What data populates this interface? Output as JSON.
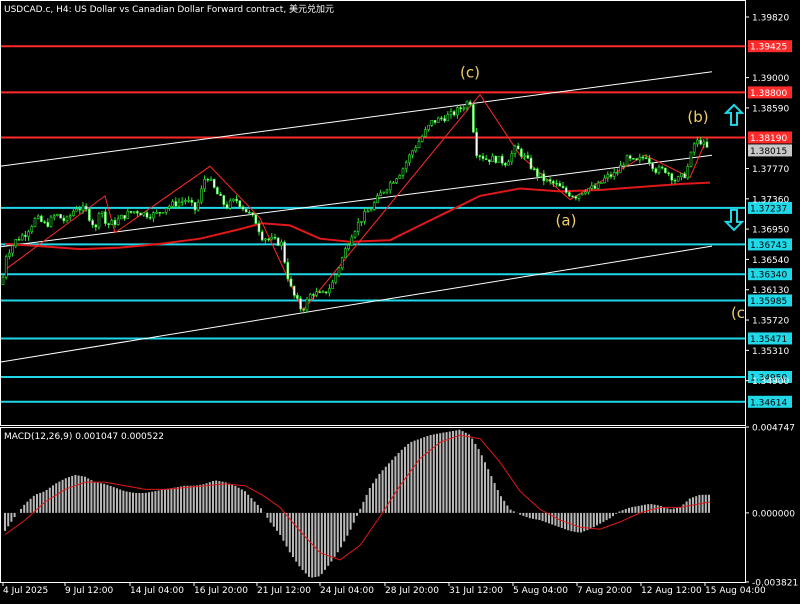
{
  "title": "USDCAD.c, H4:  US Dollar vs Canadian Dollar Forward contract, 美元兑加元",
  "chart_data": [
    {
      "type": "candlestick",
      "symbol": "USDCAD.c",
      "timeframe": "H4",
      "ylim": [
        1.343,
        1.4005
      ],
      "y_ticks": [
        "1.39820",
        "1.39000",
        "1.38590",
        "1.37770",
        "1.37360",
        "1.36950",
        "1.36540",
        "1.36130",
        "1.35720",
        "1.35310",
        "1.34900"
      ],
      "x_ticks": [
        "4 Jul 2025",
        "9 Jul 12:00",
        "14 Jul 04:00",
        "16 Jul 20:00",
        "21 Jul 12:00",
        "24 Jul 04:00",
        "28 Jul 20:00",
        "31 Jul 12:00",
        "5 Aug 04:00",
        "7 Aug 20:00",
        "12 Aug 12:00",
        "15 Aug 04:00"
      ],
      "price_path": [
        [
          0,
          1.36
        ],
        [
          6,
          1.366
        ],
        [
          16,
          1.368
        ],
        [
          26,
          1.369
        ],
        [
          36,
          1.371
        ],
        [
          46,
          1.37
        ],
        [
          56,
          1.3715
        ],
        [
          66,
          1.3705
        ],
        [
          76,
          1.3725
        ],
        [
          86,
          1.372
        ],
        [
          96,
          1.3695
        ],
        [
          100,
          1.373
        ],
        [
          106,
          1.37
        ],
        [
          116,
          1.3705
        ],
        [
          126,
          1.3715
        ],
        [
          136,
          1.372
        ],
        [
          146,
          1.3715
        ],
        [
          156,
          1.3715
        ],
        [
          166,
          1.3725
        ],
        [
          176,
          1.373
        ],
        [
          186,
          1.3735
        ],
        [
          196,
          1.372
        ],
        [
          206,
          1.377
        ],
        [
          216,
          1.3745
        ],
        [
          226,
          1.3725
        ],
        [
          236,
          1.3735
        ],
        [
          246,
          1.372
        ],
        [
          256,
          1.3705
        ],
        [
          262,
          1.3685
        ],
        [
          272,
          1.368
        ],
        [
          282,
          1.3675
        ],
        [
          286,
          1.364
        ],
        [
          292,
          1.361
        ],
        [
          302,
          1.3585
        ],
        [
          312,
          1.361
        ],
        [
          322,
          1.3605
        ],
        [
          332,
          1.362
        ],
        [
          342,
          1.3655
        ],
        [
          352,
          1.369
        ],
        [
          362,
          1.371
        ],
        [
          372,
          1.3725
        ],
        [
          382,
          1.3745
        ],
        [
          392,
          1.376
        ],
        [
          402,
          1.3775
        ],
        [
          412,
          1.38
        ],
        [
          422,
          1.382
        ],
        [
          432,
          1.384
        ],
        [
          442,
          1.3845
        ],
        [
          452,
          1.385
        ],
        [
          462,
          1.386
        ],
        [
          470,
          1.387
        ],
        [
          476,
          1.38
        ],
        [
          486,
          1.379
        ],
        [
          496,
          1.379
        ],
        [
          506,
          1.3785
        ],
        [
          516,
          1.3805
        ],
        [
          526,
          1.379
        ],
        [
          536,
          1.377
        ],
        [
          546,
          1.376
        ],
        [
          556,
          1.3755
        ],
        [
          566,
          1.3745
        ],
        [
          576,
          1.374
        ],
        [
          586,
          1.375
        ],
        [
          596,
          1.375
        ],
        [
          606,
          1.3765
        ],
        [
          616,
          1.377
        ],
        [
          626,
          1.379
        ],
        [
          636,
          1.3785
        ],
        [
          646,
          1.3795
        ],
        [
          656,
          1.3775
        ],
        [
          666,
          1.3775
        ],
        [
          676,
          1.376
        ],
        [
          686,
          1.377
        ],
        [
          694,
          1.381
        ],
        [
          700,
          1.3815
        ],
        [
          706,
          1.3805
        ],
        [
          710,
          1.3801
        ]
      ],
      "moving_average": [
        [
          5,
          1.3675
        ],
        [
          40,
          1.3672
        ],
        [
          80,
          1.3668
        ],
        [
          120,
          1.367
        ],
        [
          160,
          1.3675
        ],
        [
          200,
          1.3682
        ],
        [
          240,
          1.3695
        ],
        [
          262,
          1.3703
        ],
        [
          290,
          1.37
        ],
        [
          320,
          1.3682
        ],
        [
          350,
          1.3678
        ],
        [
          390,
          1.368
        ],
        [
          420,
          1.37
        ],
        [
          450,
          1.372
        ],
        [
          480,
          1.374
        ],
        [
          520,
          1.375
        ],
        [
          560,
          1.3746
        ],
        [
          600,
          1.3748
        ],
        [
          640,
          1.3752
        ],
        [
          680,
          1.3756
        ],
        [
          710,
          1.3758
        ]
      ],
      "zigzag": [
        [
          5,
          1.364
        ],
        [
          105,
          1.374
        ],
        [
          115,
          1.369
        ],
        [
          210,
          1.378
        ],
        [
          260,
          1.371
        ],
        [
          303,
          1.3585
        ],
        [
          480,
          1.3877
        ],
        [
          520,
          1.3795
        ],
        [
          570,
          1.3735
        ],
        [
          645,
          1.3795
        ],
        [
          690,
          1.3765
        ],
        [
          705,
          1.3812
        ]
      ],
      "channel_lines": [
        {
          "name": "upper",
          "from": [
            0,
            1.378
          ],
          "to": [
            712,
            1.3908
          ]
        },
        {
          "name": "middle",
          "from": [
            0,
            1.3671
          ],
          "to": [
            712,
            1.3795
          ]
        },
        {
          "name": "lower",
          "from": [
            0,
            1.3515
          ],
          "to": [
            712,
            1.3672
          ]
        }
      ],
      "resistance_levels": [
        {
          "label": "1.39425",
          "value": 1.39425,
          "color": "#ff2a2a"
        },
        {
          "label": "1.38800",
          "value": 1.388,
          "color": "#ff2a2a"
        },
        {
          "label": "1.38190",
          "value": 1.3819,
          "color": "#ff2a2a"
        }
      ],
      "support_levels": [
        {
          "label": "1.37237",
          "value": 1.37237,
          "color": "#20d8e8"
        },
        {
          "label": "1.36743",
          "value": 1.36743,
          "color": "#20d8e8"
        },
        {
          "label": "1.36340",
          "value": 1.3634,
          "color": "#20d8e8"
        },
        {
          "label": "1.35985",
          "value": 1.35985,
          "color": "#20d8e8"
        },
        {
          "label": "1.35471",
          "value": 1.35471,
          "color": "#20d8e8"
        },
        {
          "label": "1.34950",
          "value": 1.3495,
          "color": "#20d8e8"
        },
        {
          "label": "1.34614",
          "value": 1.34614,
          "color": "#20d8e8"
        }
      ],
      "current_price_label": "1.38015",
      "current_price": 1.38015,
      "wave_labels": [
        {
          "text": "(c)",
          "x": 470,
          "y": 1.39
        },
        {
          "text": "(b)",
          "x": 698,
          "y": 1.384
        },
        {
          "text": "(a)",
          "x": 566,
          "y": 1.37
        },
        {
          "text": "(c",
          "x": 738,
          "y": 1.3575
        }
      ],
      "arrows": [
        {
          "direction": "up",
          "color": "#20d8e8"
        },
        {
          "direction": "down",
          "color": "#20d8e8"
        }
      ]
    },
    {
      "type": "histogram",
      "title": "MACD(12,26,9) 0.001047 0.000522",
      "ylim": [
        -0.003821,
        0.004747
      ],
      "y_ticks": [
        "0.004747",
        "0.000000",
        "-0.003821"
      ],
      "histogram_path": [
        [
          5,
          -0.001
        ],
        [
          15,
          -0.0002
        ],
        [
          25,
          0.0005
        ],
        [
          35,
          0.001
        ],
        [
          45,
          0.0012
        ],
        [
          55,
          0.0016
        ],
        [
          65,
          0.0019
        ],
        [
          75,
          0.0021
        ],
        [
          85,
          0.002
        ],
        [
          95,
          0.0017
        ],
        [
          105,
          0.0016
        ],
        [
          115,
          0.0014
        ],
        [
          125,
          0.0012
        ],
        [
          135,
          0.0011
        ],
        [
          145,
          0.0011
        ],
        [
          155,
          0.0012
        ],
        [
          165,
          0.0013
        ],
        [
          175,
          0.0014
        ],
        [
          185,
          0.0015
        ],
        [
          195,
          0.0015
        ],
        [
          205,
          0.0016
        ],
        [
          215,
          0.0018
        ],
        [
          225,
          0.0017
        ],
        [
          235,
          0.0015
        ],
        [
          245,
          0.0012
        ],
        [
          255,
          0.0006
        ],
        [
          262,
          0.0002
        ],
        [
          270,
          -0.0005
        ],
        [
          280,
          -0.0012
        ],
        [
          290,
          -0.0022
        ],
        [
          300,
          -0.003
        ],
        [
          310,
          -0.0036
        ],
        [
          320,
          -0.0035
        ],
        [
          330,
          -0.0028
        ],
        [
          340,
          -0.002
        ],
        [
          350,
          -0.001
        ],
        [
          360,
          0.0002
        ],
        [
          370,
          0.0014
        ],
        [
          380,
          0.0022
        ],
        [
          390,
          0.0028
        ],
        [
          400,
          0.0034
        ],
        [
          410,
          0.0039
        ],
        [
          420,
          0.0041
        ],
        [
          430,
          0.0043
        ],
        [
          440,
          0.0044
        ],
        [
          450,
          0.0045
        ],
        [
          460,
          0.0046
        ],
        [
          470,
          0.0043
        ],
        [
          480,
          0.0034
        ],
        [
          490,
          0.0022
        ],
        [
          500,
          0.001
        ],
        [
          510,
          0.0002
        ],
        [
          520,
          -0.0001
        ],
        [
          530,
          -0.0003
        ],
        [
          540,
          -0.0004
        ],
        [
          550,
          -0.0006
        ],
        [
          560,
          -0.0008
        ],
        [
          570,
          -0.001
        ],
        [
          580,
          -0.0011
        ],
        [
          590,
          -0.0009
        ],
        [
          600,
          -0.0006
        ],
        [
          610,
          -0.0003
        ],
        [
          620,
          0.0001
        ],
        [
          630,
          0.0003
        ],
        [
          640,
          0.0004
        ],
        [
          650,
          0.0005
        ],
        [
          660,
          0.0004
        ],
        [
          670,
          0.0002
        ],
        [
          680,
          0.0003
        ],
        [
          690,
          0.0008
        ],
        [
          700,
          0.001
        ],
        [
          710,
          0.001
        ]
      ],
      "signal_path": [
        [
          5,
          -0.0012
        ],
        [
          25,
          -0.0004
        ],
        [
          45,
          0.0006
        ],
        [
          65,
          0.0013
        ],
        [
          85,
          0.0017
        ],
        [
          105,
          0.0017
        ],
        [
          125,
          0.0015
        ],
        [
          145,
          0.0013
        ],
        [
          165,
          0.0013
        ],
        [
          185,
          0.0014
        ],
        [
          205,
          0.0015
        ],
        [
          225,
          0.0016
        ],
        [
          245,
          0.0015
        ],
        [
          262,
          0.001
        ],
        [
          280,
          0.0003
        ],
        [
          300,
          -0.001
        ],
        [
          320,
          -0.0022
        ],
        [
          340,
          -0.0026
        ],
        [
          360,
          -0.0018
        ],
        [
          380,
          -0.0002
        ],
        [
          400,
          0.0015
        ],
        [
          420,
          0.003
        ],
        [
          440,
          0.0039
        ],
        [
          460,
          0.0043
        ],
        [
          480,
          0.0041
        ],
        [
          500,
          0.0028
        ],
        [
          520,
          0.0012
        ],
        [
          540,
          0.0002
        ],
        [
          560,
          -0.0004
        ],
        [
          580,
          -0.0008
        ],
        [
          600,
          -0.0009
        ],
        [
          620,
          -0.0005
        ],
        [
          640,
          0.0
        ],
        [
          660,
          0.0003
        ],
        [
          680,
          0.0003
        ],
        [
          700,
          0.0005
        ],
        [
          710,
          0.0006
        ]
      ]
    }
  ]
}
